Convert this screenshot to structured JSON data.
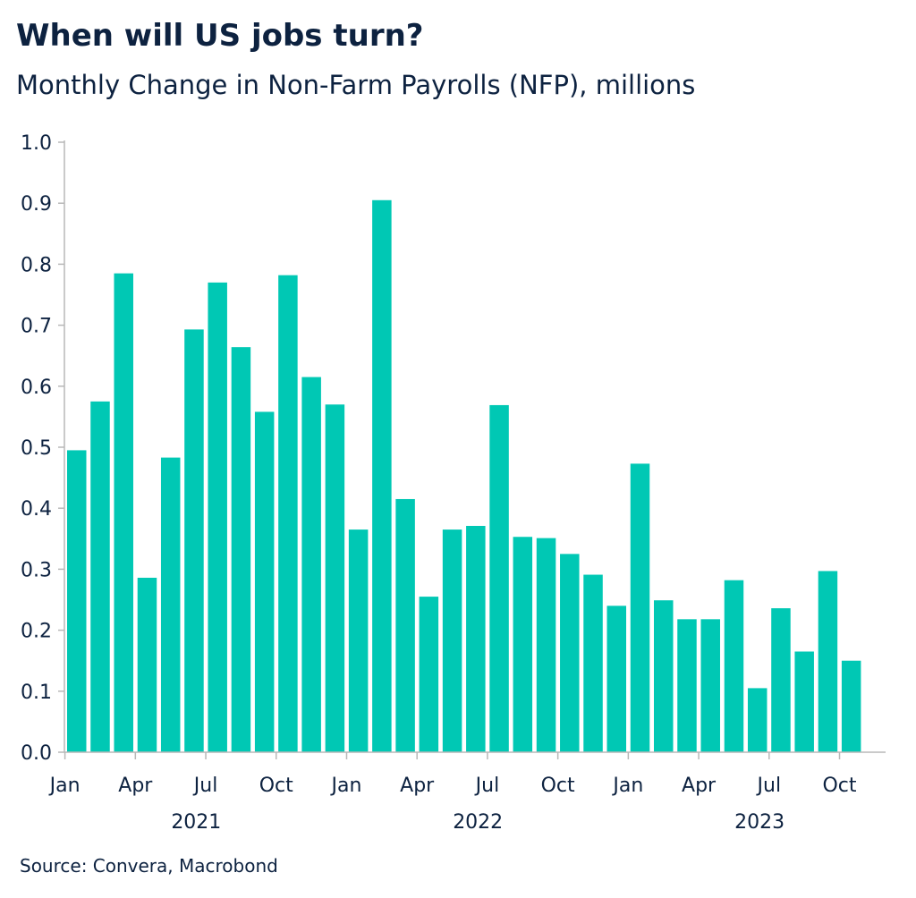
{
  "title": "When will US jobs turn?",
  "subtitle": "Monthly Change in Non-Farm Payrolls (NFP), millions",
  "source": "Source: Convera, Macrobond",
  "colors": {
    "bar": "#00c8b4",
    "text": "#0d2240",
    "axis": "#b8b8b8"
  },
  "chart_data": {
    "type": "bar",
    "title": "When will US jobs turn?",
    "subtitle": "Monthly Change in Non-Farm Payrolls (NFP), millions",
    "xlabel": "",
    "ylabel": "",
    "ylim": [
      0,
      1.0
    ],
    "y_ticks": [
      "0.0",
      "0.1",
      "0.2",
      "0.3",
      "0.4",
      "0.5",
      "0.6",
      "0.7",
      "0.8",
      "0.9",
      "1.0"
    ],
    "x_ticks": [
      {
        "month": "2021-01",
        "label": "Jan"
      },
      {
        "month": "2021-04",
        "label": "Apr"
      },
      {
        "month": "2021-07",
        "label": "Jul"
      },
      {
        "month": "2021-10",
        "label": "Oct"
      },
      {
        "month": "2022-01",
        "label": "Jan"
      },
      {
        "month": "2022-04",
        "label": "Apr"
      },
      {
        "month": "2022-07",
        "label": "Jul"
      },
      {
        "month": "2022-10",
        "label": "Oct"
      },
      {
        "month": "2023-01",
        "label": "Jan"
      },
      {
        "month": "2023-04",
        "label": "Apr"
      },
      {
        "month": "2023-07",
        "label": "Jul"
      },
      {
        "month": "2023-10",
        "label": "Oct"
      }
    ],
    "year_labels": [
      {
        "month": "2021-06",
        "label": "2021"
      },
      {
        "month": "2022-06",
        "label": "2022"
      },
      {
        "month": "2023-06",
        "label": "2023"
      }
    ],
    "grid": false,
    "legend": "none",
    "categories": [
      "2021-01",
      "2021-02",
      "2021-03",
      "2021-04",
      "2021-05",
      "2021-06",
      "2021-07",
      "2021-08",
      "2021-09",
      "2021-10",
      "2021-11",
      "2021-12",
      "2022-01",
      "2022-02",
      "2022-03",
      "2022-04",
      "2022-05",
      "2022-06",
      "2022-07",
      "2022-08",
      "2022-09",
      "2022-10",
      "2022-11",
      "2022-12",
      "2023-01",
      "2023-02",
      "2023-03",
      "2023-04",
      "2023-05",
      "2023-06",
      "2023-07",
      "2023-08",
      "2023-09",
      "2023-10"
    ],
    "values": [
      0.495,
      0.575,
      0.785,
      0.286,
      0.483,
      0.693,
      0.77,
      0.664,
      0.558,
      0.782,
      0.615,
      0.57,
      0.365,
      0.905,
      0.415,
      0.255,
      0.365,
      0.371,
      0.569,
      0.353,
      0.351,
      0.325,
      0.291,
      0.24,
      0.473,
      0.249,
      0.218,
      0.218,
      0.282,
      0.105,
      0.236,
      0.165,
      0.297,
      0.15
    ]
  }
}
